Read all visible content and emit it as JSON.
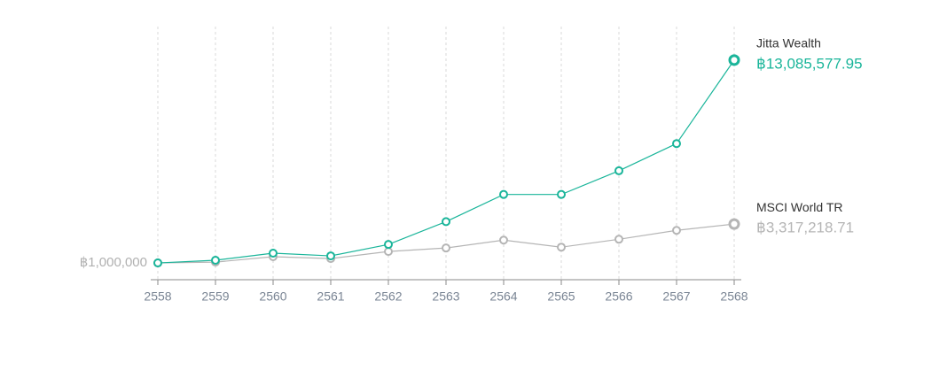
{
  "chart_data": {
    "type": "line",
    "categories": [
      "2558",
      "2559",
      "2560",
      "2561",
      "2562",
      "2563",
      "2564",
      "2565",
      "2566",
      "2567",
      "2568"
    ],
    "series": [
      {
        "name": "Jitta Wealth",
        "color": "#1ab59a",
        "values": [
          1000000,
          1160000,
          1580000,
          1420000,
          2100000,
          3460000,
          5080000,
          5080000,
          6490000,
          8110000,
          13085577.95
        ],
        "value_labels": [
          null,
          null,
          null,
          null,
          null,
          null,
          null,
          null,
          null,
          null,
          "฿13,085,577.95"
        ]
      },
      {
        "name": "MSCI World TR",
        "color": "#b5b5b5",
        "values": [
          1000000,
          1050000,
          1370000,
          1260000,
          1680000,
          1890000,
          2360000,
          1940000,
          2410000,
          2940000,
          3317218.71
        ],
        "value_labels": [
          null,
          null,
          null,
          null,
          null,
          null,
          null,
          null,
          null,
          null,
          "฿3,317,218.71"
        ]
      }
    ],
    "ylim": [
      0,
      13500000
    ],
    "yticks": [
      {
        "value": 1000000,
        "label": "฿1,000,000"
      }
    ],
    "grid": true
  }
}
